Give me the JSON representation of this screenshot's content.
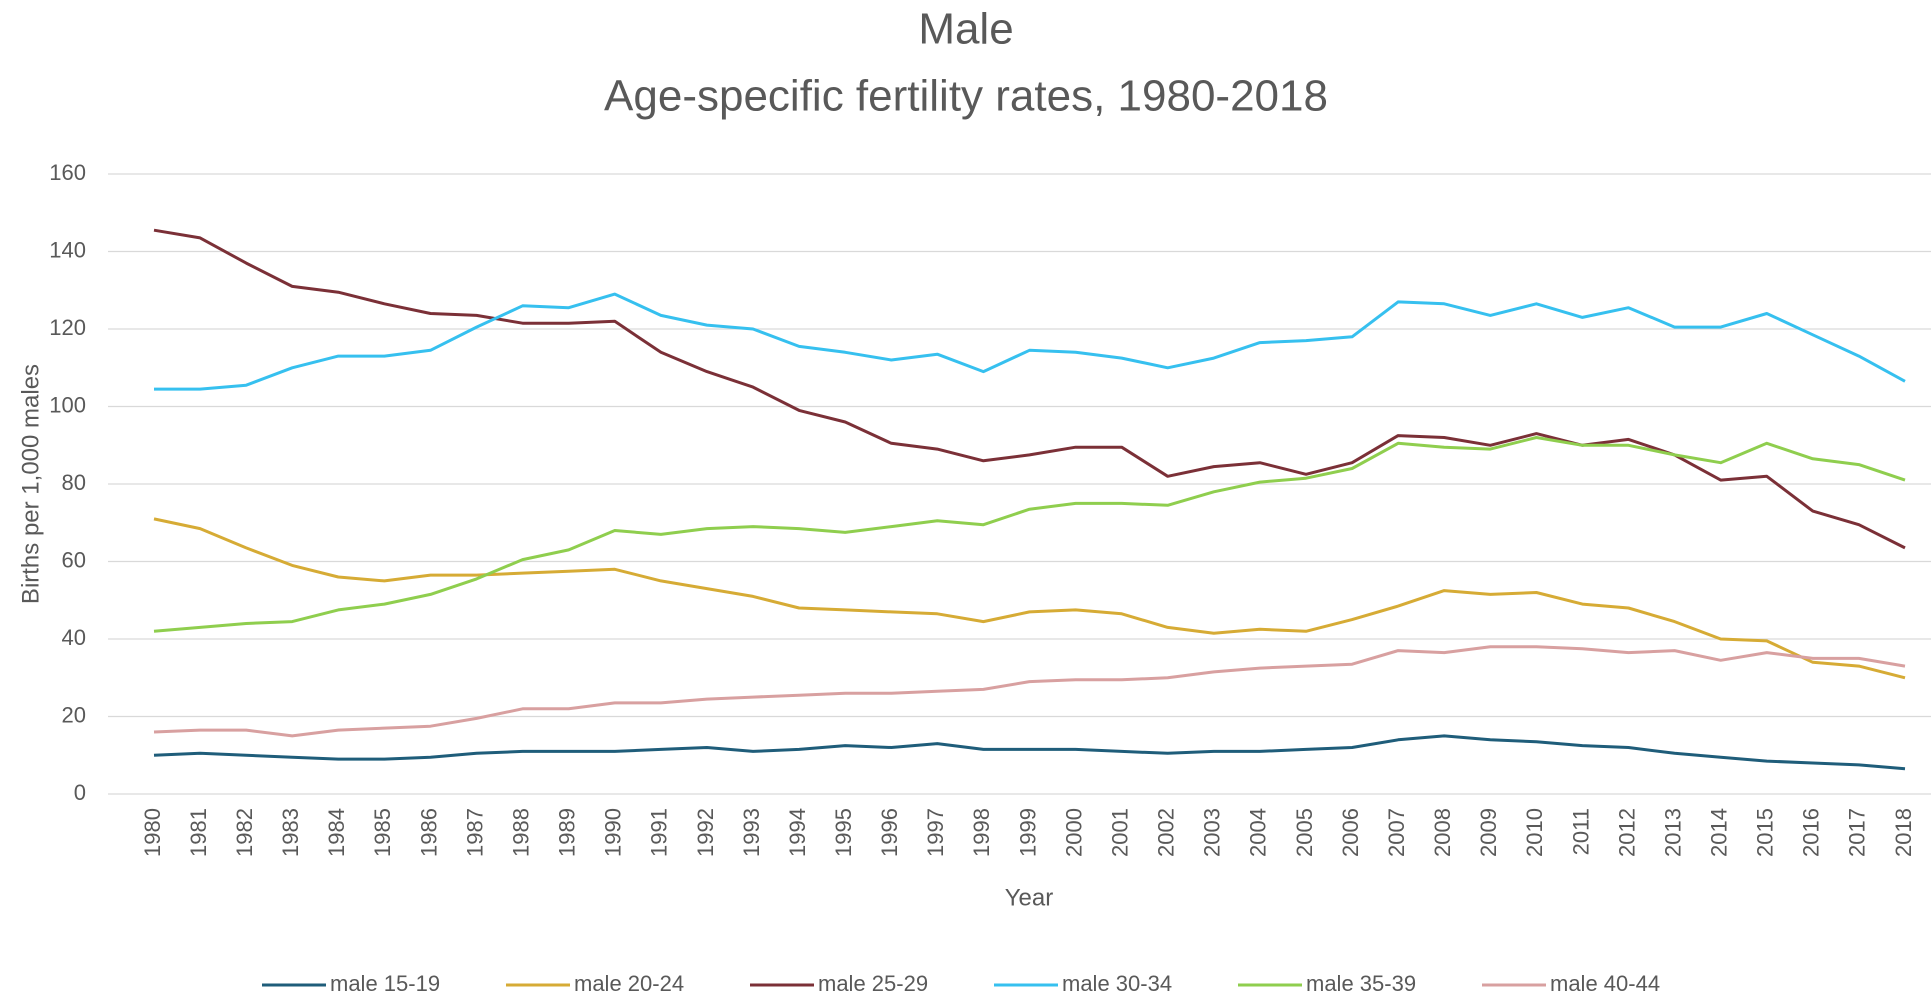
{
  "chart_data": {
    "type": "line",
    "title": "Male",
    "subtitle": "Age-specific fertility rates, 1980-2018",
    "xlabel": "Year",
    "ylabel": "Births per 1,000 males",
    "categories": [
      "1980",
      "1981",
      "1982",
      "1983",
      "1984",
      "1985",
      "1986",
      "1987",
      "1988",
      "1989",
      "1990",
      "1991",
      "1992",
      "1993",
      "1994",
      "1995",
      "1996",
      "1997",
      "1998",
      "1999",
      "2000",
      "2001",
      "2002",
      "2003",
      "2004",
      "2005",
      "2006",
      "2007",
      "2008",
      "2009",
      "2010",
      "2011",
      "2012",
      "2013",
      "2014",
      "2015",
      "2016",
      "2017",
      "2018"
    ],
    "ylim": [
      0,
      160
    ],
    "yticks": [
      0,
      20,
      40,
      60,
      80,
      100,
      120,
      140,
      160
    ],
    "grid": true,
    "legend": "bottom",
    "series": [
      {
        "name": "male 15-19",
        "color": "#1f5d7a",
        "values": [
          10,
          10.5,
          10,
          9.5,
          9,
          9,
          9.5,
          10.5,
          11,
          11,
          11,
          11.5,
          12,
          11,
          11.5,
          12.5,
          12,
          13,
          11.5,
          11.5,
          11.5,
          11,
          10.5,
          11,
          11,
          11.5,
          12,
          14,
          15,
          14,
          13.5,
          12.5,
          12,
          10.5,
          9.5,
          8.5,
          8,
          7.5,
          6.5
        ]
      },
      {
        "name": "male 20-24",
        "color": "#d6ab35",
        "values": [
          71,
          68.5,
          63.5,
          59,
          56,
          55,
          56.5,
          56.5,
          57,
          57.5,
          58,
          55,
          53,
          51,
          48,
          47.5,
          47,
          46.5,
          44.5,
          47,
          47.5,
          46.5,
          43,
          41.5,
          42.5,
          42,
          45,
          48.5,
          52.5,
          51.5,
          52,
          49,
          48,
          44.5,
          40,
          39.5,
          34,
          33,
          30
        ]
      },
      {
        "name": "male 25-29",
        "color": "#7b3037",
        "values": [
          145.5,
          143.5,
          137,
          131,
          129.5,
          126.5,
          124,
          123.5,
          121.5,
          121.5,
          122,
          114,
          109,
          105,
          99,
          96,
          90.5,
          89,
          86,
          87.5,
          89.5,
          89.5,
          82,
          84.5,
          85.5,
          82.5,
          85.5,
          92.5,
          92,
          90,
          93,
          90,
          91.5,
          87.5,
          81,
          82,
          73,
          69.5,
          63.5
        ]
      },
      {
        "name": "male 30-34",
        "color": "#36c0ef",
        "values": [
          104.5,
          104.5,
          105.5,
          110,
          113,
          113,
          114.5,
          120.5,
          126,
          125.5,
          129,
          123.5,
          121,
          120,
          115.5,
          114,
          112,
          113.5,
          109,
          114.5,
          114,
          112.5,
          110,
          112.5,
          116.5,
          117,
          118,
          127,
          126.5,
          123.5,
          126.5,
          123,
          125.5,
          120.5,
          120.5,
          124,
          118.5,
          113,
          106.5
        ]
      },
      {
        "name": "male 35-39",
        "color": "#8fce4e",
        "values": [
          42,
          43,
          44,
          44.5,
          47.5,
          49,
          51.5,
          55.5,
          60.5,
          63,
          68,
          67,
          68.5,
          69,
          68.5,
          67.5,
          69,
          70.5,
          69.5,
          73.5,
          75,
          75,
          74.5,
          78,
          80.5,
          81.5,
          84,
          90.5,
          89.5,
          89,
          92,
          90,
          90,
          87.5,
          85.5,
          90.5,
          86.5,
          85,
          81
        ]
      },
      {
        "name": "male 40-44",
        "color": "#d8a0a0",
        "values": [
          16,
          16.5,
          16.5,
          15,
          16.5,
          17,
          17.5,
          19.5,
          22,
          22,
          23.5,
          23.5,
          24.5,
          25,
          25.5,
          26,
          26,
          26.5,
          27,
          29,
          29.5,
          29.5,
          30,
          31.5,
          32.5,
          33,
          33.5,
          37,
          36.5,
          38,
          38,
          37.5,
          36.5,
          37,
          34.5,
          36.5,
          35,
          35,
          33
        ]
      }
    ]
  }
}
